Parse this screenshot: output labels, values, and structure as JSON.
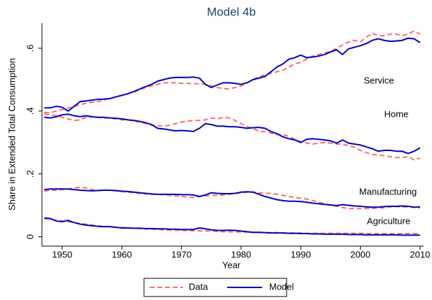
{
  "chart_data": {
    "type": "line",
    "title": "Model 4b",
    "xlabel": "Year",
    "ylabel": "Share in Extended Total Consumption",
    "x": [
      1947,
      1948,
      1949,
      1950,
      1951,
      1952,
      1953,
      1954,
      1955,
      1956,
      1957,
      1958,
      1959,
      1960,
      1961,
      1962,
      1963,
      1964,
      1965,
      1966,
      1967,
      1968,
      1969,
      1970,
      1971,
      1972,
      1973,
      1974,
      1975,
      1976,
      1977,
      1978,
      1979,
      1980,
      1981,
      1982,
      1983,
      1984,
      1985,
      1986,
      1987,
      1988,
      1989,
      1990,
      1991,
      1992,
      1993,
      1994,
      1995,
      1996,
      1997,
      1998,
      1999,
      2000,
      2001,
      2002,
      2003,
      2004,
      2005,
      2006,
      2007,
      2008,
      2009,
      2010
    ],
    "xlim": [
      1946.6,
      2010.6
    ],
    "xticks": [
      1950,
      1960,
      1970,
      1980,
      1990,
      2000,
      2010
    ],
    "ylim": [
      -0.03,
      0.68
    ],
    "yticks": [
      0,
      {
        "value": 0.2,
        "label": ".2"
      },
      {
        "value": 0.4,
        "label": ".4"
      },
      {
        "value": 0.6,
        "label": ".6"
      }
    ],
    "annotations": [
      "Service",
      "Home",
      "Manufacturing",
      "Agriculture"
    ],
    "series": [
      {
        "name": "Data",
        "color": "#ff6b6b",
        "dashed": true,
        "lines": [
          [
            0.395,
            0.395,
            0.4,
            0.405,
            0.41,
            0.415,
            0.42,
            0.425,
            0.428,
            0.43,
            0.435,
            0.44,
            0.445,
            0.45,
            0.455,
            0.46,
            0.468,
            0.475,
            0.48,
            0.485,
            0.49,
            0.49,
            0.49,
            0.488,
            0.488,
            0.487,
            0.487,
            0.485,
            0.48,
            0.475,
            0.472,
            0.47,
            0.475,
            0.48,
            0.49,
            0.5,
            0.51,
            0.515,
            0.52,
            0.525,
            0.53,
            0.54,
            0.55,
            0.555,
            0.565,
            0.575,
            0.58,
            0.585,
            0.59,
            0.6,
            0.61,
            0.62,
            0.625,
            0.62,
            0.635,
            0.648,
            0.64,
            0.64,
            0.645,
            0.645,
            0.64,
            0.645,
            0.655,
            0.645
          ],
          [
            0.39,
            0.388,
            0.385,
            0.38,
            0.375,
            0.37,
            0.372,
            0.38,
            0.382,
            0.38,
            0.378,
            0.378,
            0.375,
            0.372,
            0.372,
            0.368,
            0.365,
            0.36,
            0.355,
            0.353,
            0.352,
            0.355,
            0.36,
            0.365,
            0.368,
            0.37,
            0.37,
            0.372,
            0.378,
            0.375,
            0.38,
            0.378,
            0.37,
            0.36,
            0.35,
            0.345,
            0.335,
            0.335,
            0.33,
            0.325,
            0.325,
            0.32,
            0.31,
            0.302,
            0.298,
            0.295,
            0.298,
            0.3,
            0.298,
            0.295,
            0.295,
            0.29,
            0.285,
            0.275,
            0.268,
            0.262,
            0.26,
            0.258,
            0.255,
            0.252,
            0.252,
            0.255,
            0.245,
            0.25
          ],
          [
            0.145,
            0.148,
            0.148,
            0.15,
            0.152,
            0.155,
            0.158,
            0.155,
            0.15,
            0.148,
            0.148,
            0.148,
            0.146,
            0.144,
            0.142,
            0.14,
            0.138,
            0.136,
            0.135,
            0.135,
            0.134,
            0.132,
            0.13,
            0.128,
            0.126,
            0.125,
            0.128,
            0.13,
            0.132,
            0.132,
            0.133,
            0.135,
            0.138,
            0.14,
            0.142,
            0.142,
            0.14,
            0.138,
            0.138,
            0.135,
            0.132,
            0.128,
            0.125,
            0.122,
            0.12,
            0.115,
            0.11,
            0.105,
            0.1,
            0.097,
            0.093,
            0.09,
            0.09,
            0.09,
            0.09,
            0.09,
            0.092,
            0.092,
            0.095,
            0.096,
            0.095,
            0.095,
            0.093,
            0.092
          ],
          [
            0.058,
            0.055,
            0.052,
            0.05,
            0.048,
            0.045,
            0.042,
            0.04,
            0.037,
            0.035,
            0.033,
            0.032,
            0.03,
            0.029,
            0.028,
            0.027,
            0.026,
            0.025,
            0.024,
            0.023,
            0.022,
            0.021,
            0.021,
            0.02,
            0.02,
            0.019,
            0.019,
            0.018,
            0.018,
            0.017,
            0.016,
            0.016,
            0.015,
            0.015,
            0.015,
            0.014,
            0.014,
            0.013,
            0.013,
            0.013,
            0.012,
            0.012,
            0.012,
            0.012,
            0.011,
            0.011,
            0.011,
            0.011,
            0.011,
            0.011,
            0.011,
            0.011,
            0.011,
            0.011,
            0.01,
            0.01,
            0.01,
            0.01,
            0.01,
            0.01,
            0.01,
            0.01,
            0.01,
            0.01
          ]
        ]
      },
      {
        "name": "Model",
        "color": "#0000cc",
        "dashed": false,
        "lines": [
          [
            0.41,
            0.41,
            0.415,
            0.412,
            0.4,
            0.415,
            0.43,
            0.432,
            0.435,
            0.437,
            0.438,
            0.44,
            0.445,
            0.45,
            0.455,
            0.462,
            0.47,
            0.478,
            0.485,
            0.495,
            0.5,
            0.505,
            0.507,
            0.507,
            0.507,
            0.508,
            0.505,
            0.485,
            0.475,
            0.483,
            0.49,
            0.49,
            0.488,
            0.485,
            0.49,
            0.5,
            0.505,
            0.51,
            0.525,
            0.54,
            0.55,
            0.565,
            0.57,
            0.578,
            0.57,
            0.572,
            0.575,
            0.58,
            0.588,
            0.595,
            0.58,
            0.598,
            0.603,
            0.608,
            0.615,
            0.625,
            0.63,
            0.625,
            0.622,
            0.623,
            0.625,
            0.632,
            0.63,
            0.618
          ],
          [
            0.38,
            0.378,
            0.382,
            0.388,
            0.39,
            0.385,
            0.382,
            0.385,
            0.382,
            0.38,
            0.38,
            0.378,
            0.377,
            0.375,
            0.372,
            0.37,
            0.367,
            0.363,
            0.357,
            0.345,
            0.343,
            0.34,
            0.337,
            0.338,
            0.337,
            0.335,
            0.345,
            0.36,
            0.357,
            0.352,
            0.352,
            0.35,
            0.35,
            0.348,
            0.345,
            0.347,
            0.348,
            0.345,
            0.335,
            0.328,
            0.318,
            0.312,
            0.308,
            0.3,
            0.31,
            0.312,
            0.31,
            0.308,
            0.305,
            0.298,
            0.308,
            0.298,
            0.295,
            0.292,
            0.286,
            0.28,
            0.272,
            0.275,
            0.275,
            0.272,
            0.272,
            0.265,
            0.272,
            0.283
          ],
          [
            0.15,
            0.152,
            0.152,
            0.152,
            0.152,
            0.15,
            0.148,
            0.147,
            0.146,
            0.147,
            0.148,
            0.148,
            0.147,
            0.145,
            0.144,
            0.142,
            0.14,
            0.138,
            0.136,
            0.135,
            0.135,
            0.135,
            0.135,
            0.134,
            0.134,
            0.133,
            0.128,
            0.133,
            0.14,
            0.138,
            0.137,
            0.137,
            0.138,
            0.142,
            0.143,
            0.142,
            0.135,
            0.128,
            0.123,
            0.118,
            0.115,
            0.113,
            0.113,
            0.112,
            0.11,
            0.107,
            0.105,
            0.103,
            0.101,
            0.099,
            0.102,
            0.1,
            0.098,
            0.097,
            0.095,
            0.094,
            0.094,
            0.096,
            0.097,
            0.097,
            0.098,
            0.097,
            0.094,
            0.095
          ],
          [
            0.06,
            0.058,
            0.05,
            0.048,
            0.052,
            0.045,
            0.04,
            0.037,
            0.035,
            0.033,
            0.032,
            0.032,
            0.03,
            0.028,
            0.028,
            0.027,
            0.027,
            0.026,
            0.026,
            0.025,
            0.025,
            0.024,
            0.024,
            0.023,
            0.023,
            0.023,
            0.028,
            0.025,
            0.022,
            0.02,
            0.02,
            0.021,
            0.02,
            0.018,
            0.016,
            0.014,
            0.014,
            0.013,
            0.012,
            0.012,
            0.012,
            0.011,
            0.011,
            0.01,
            0.01,
            0.009,
            0.009,
            0.008,
            0.008,
            0.008,
            0.008,
            0.007,
            0.007,
            0.007,
            0.006,
            0.006,
            0.006,
            0.006,
            0.006,
            0.006,
            0.005,
            0.005,
            0.005,
            0.005
          ]
        ]
      }
    ]
  }
}
